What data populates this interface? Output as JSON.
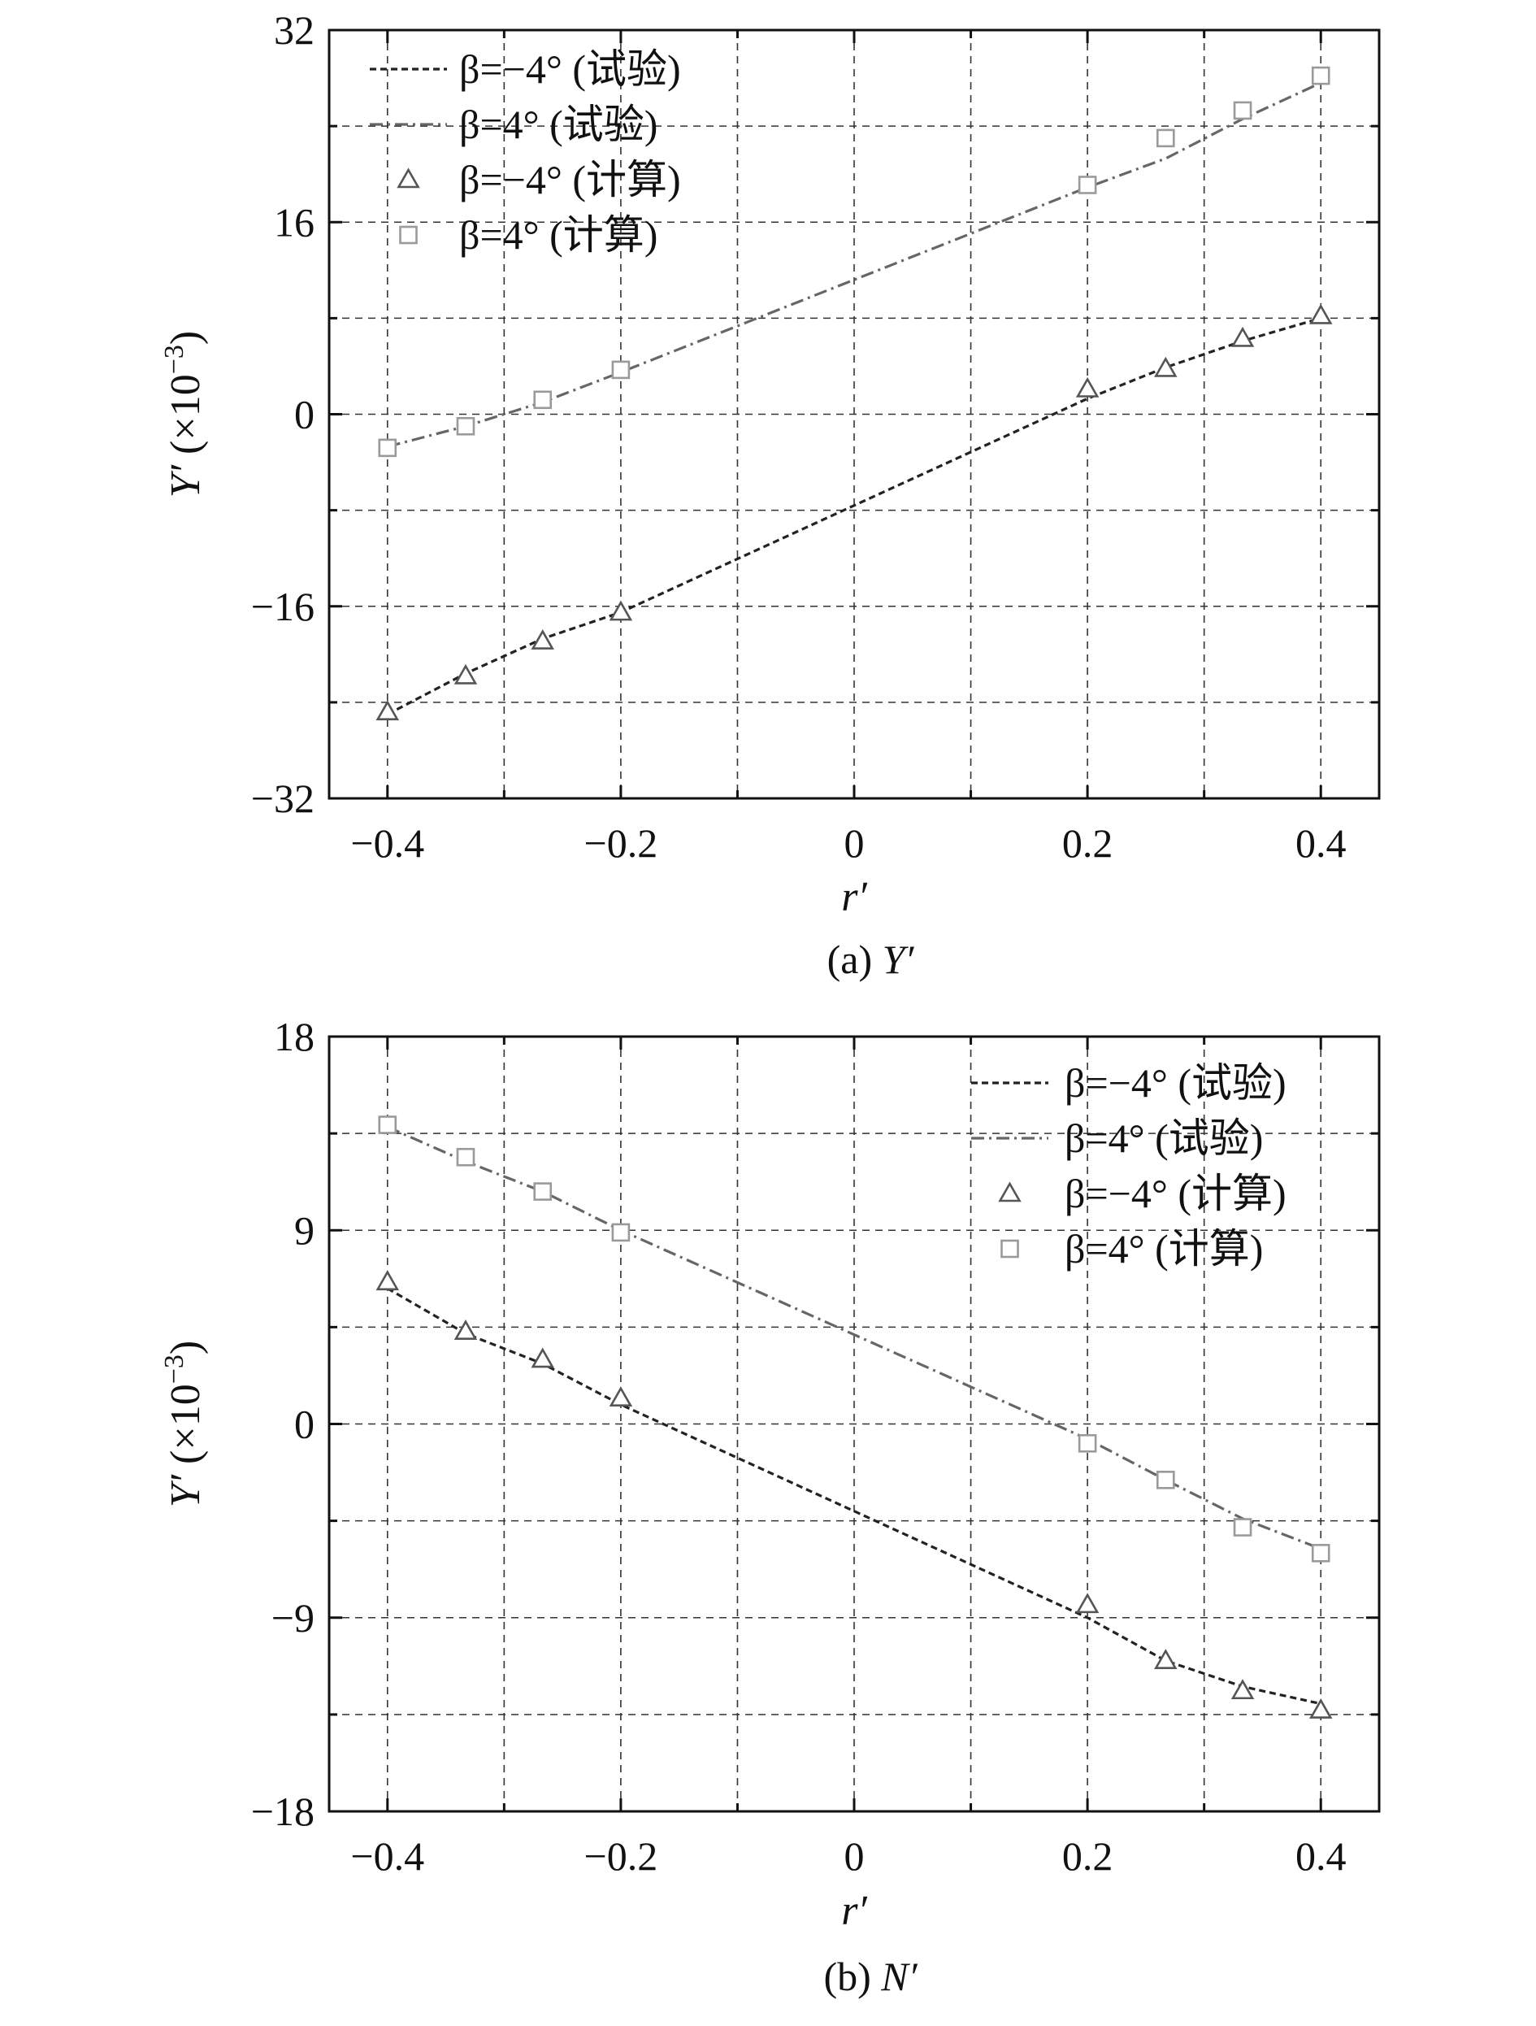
{
  "chart_data": [
    {
      "id": "a",
      "type": "line",
      "caption": "(a) Y′",
      "caption_prefix": "(a) ",
      "caption_symbol": "Y′",
      "xlabel": "r′",
      "ylabel": "Y′ (×10⁻³)",
      "ylabel_symbol": "Y′",
      "ylabel_unit": "(×10",
      "ylabel_exp": "−3",
      "xlim": [
        -0.45,
        0.45
      ],
      "ylim": [
        -32,
        32
      ],
      "x_ticks": [
        -0.4,
        -0.2,
        0,
        0.2,
        0.4
      ],
      "x_tick_labels": [
        "−0.4",
        "−0.2",
        "0",
        "0.2",
        "0.4"
      ],
      "y_ticks": [
        -32,
        -16,
        0,
        16,
        32
      ],
      "y_tick_labels": [
        "−32",
        "−16",
        "0",
        "16",
        "32"
      ],
      "grid": true,
      "legend_position": "top-left",
      "series": [
        {
          "name": "β=−4° (试验)",
          "style": "dashed",
          "color": "#222222",
          "x": [
            -0.4,
            -0.333,
            -0.267,
            -0.2,
            0.2,
            0.267,
            0.333,
            0.4
          ],
          "y": [
            -25.0,
            -21.6,
            -18.7,
            -16.5,
            1.3,
            3.9,
            6.1,
            8.0
          ]
        },
        {
          "name": "β=4° (试验)",
          "style": "dash-dot",
          "color": "#666666",
          "x": [
            -0.4,
            -0.333,
            -0.267,
            -0.2,
            0.2,
            0.267,
            0.333,
            0.4
          ],
          "y": [
            -2.7,
            -1.0,
            1.0,
            3.5,
            18.9,
            21.3,
            24.6,
            27.6
          ]
        },
        {
          "name": "β=−4° (计算)",
          "style": "triangle-marker",
          "color": "#555555",
          "x": [
            -0.4,
            -0.333,
            -0.267,
            -0.2,
            0.2,
            0.267,
            0.333,
            0.4
          ],
          "y": [
            -24.8,
            -21.8,
            -18.9,
            -16.5,
            2.1,
            3.8,
            6.3,
            8.2
          ]
        },
        {
          "name": "β=4° (计算)",
          "style": "square-marker",
          "color": "#9a9a9a",
          "x": [
            -0.4,
            -0.333,
            -0.267,
            -0.2,
            0.2,
            0.267,
            0.333,
            0.4
          ],
          "y": [
            -2.8,
            -1.0,
            1.2,
            3.7,
            19.1,
            23.0,
            25.3,
            28.2
          ]
        }
      ]
    },
    {
      "id": "b",
      "type": "line",
      "caption": "(b) N′",
      "caption_prefix": "(b) ",
      "caption_symbol": "N′",
      "xlabel": "r′",
      "ylabel": "Y′ (×10⁻³)",
      "ylabel_symbol": "Y′",
      "ylabel_unit": "(×10",
      "ylabel_exp": "−3",
      "xlim": [
        -0.45,
        0.45
      ],
      "ylim": [
        -18,
        18
      ],
      "x_ticks": [
        -0.4,
        -0.2,
        0,
        0.2,
        0.4
      ],
      "x_tick_labels": [
        "−0.4",
        "−0.2",
        "0",
        "0.2",
        "0.4"
      ],
      "y_ticks": [
        -18,
        -9,
        0,
        9,
        18
      ],
      "y_tick_labels": [
        "−18",
        "−9",
        "0",
        "9",
        "18"
      ],
      "grid": true,
      "legend_position": "top-right",
      "series": [
        {
          "name": "β=−4° (试验)",
          "style": "dashed",
          "color": "#222222",
          "x": [
            -0.4,
            -0.333,
            -0.267,
            -0.2,
            0.2,
            0.267,
            0.333,
            0.4
          ],
          "y": [
            6.3,
            4.2,
            2.8,
            0.9,
            -9.0,
            -11.0,
            -12.2,
            -13.0
          ]
        },
        {
          "name": "β=4° (试验)",
          "style": "dash-dot",
          "color": "#666666",
          "x": [
            -0.4,
            -0.333,
            -0.267,
            -0.2,
            0.2,
            0.267,
            0.333,
            0.4
          ],
          "y": [
            13.8,
            12.2,
            10.8,
            9.0,
            -0.7,
            -2.6,
            -4.4,
            -5.8
          ]
        },
        {
          "name": "β=−4° (计算)",
          "style": "triangle-marker",
          "color": "#555555",
          "x": [
            -0.4,
            -0.333,
            -0.267,
            -0.2,
            0.2,
            0.267,
            0.333,
            0.4
          ],
          "y": [
            6.6,
            4.3,
            3.0,
            1.2,
            -8.4,
            -11.0,
            -12.4,
            -13.3
          ]
        },
        {
          "name": "β=4° (计算)",
          "style": "square-marker",
          "color": "#9a9a9a",
          "x": [
            -0.4,
            -0.333,
            -0.267,
            -0.2,
            0.2,
            0.267,
            0.333,
            0.4
          ],
          "y": [
            13.9,
            12.4,
            10.8,
            8.9,
            -0.9,
            -2.6,
            -4.8,
            -6.0
          ]
        }
      ]
    }
  ]
}
